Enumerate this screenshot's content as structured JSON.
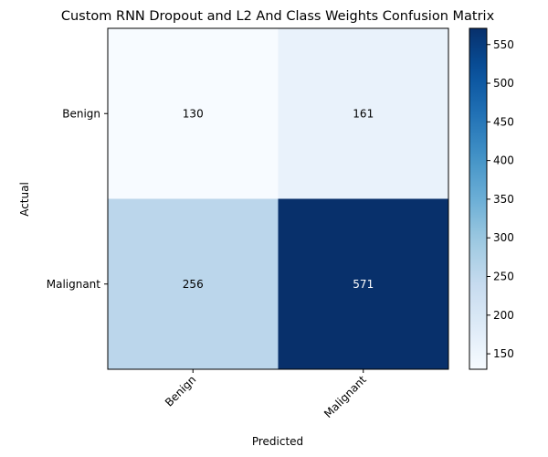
{
  "chart_data": {
    "type": "heatmap",
    "title": "Custom RNN Dropout and L2 And Class Weights Confusion Matrix",
    "xlabel": "Predicted",
    "ylabel": "Actual",
    "x_categories": [
      "Benign",
      "Malignant"
    ],
    "y_categories": [
      "Benign",
      "Malignant"
    ],
    "values": [
      [
        130,
        161
      ],
      [
        256,
        571
      ]
    ],
    "colormap": "Blues",
    "colorbar": {
      "min": 130,
      "max": 571,
      "ticks": [
        "150",
        "200",
        "250",
        "300",
        "350",
        "400",
        "450",
        "500",
        "550"
      ]
    },
    "x_tick_rotation_deg": 45,
    "grid": false
  }
}
